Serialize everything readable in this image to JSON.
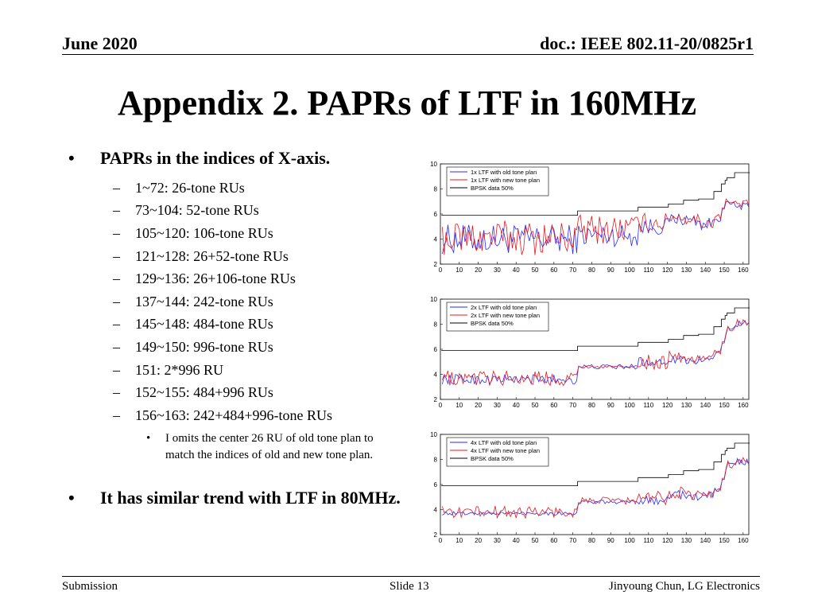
{
  "header": {
    "date": "June 2020",
    "doc": "doc.: IEEE 802.11-20/0825r1"
  },
  "title": "Appendix 2. PAPRs of LTF in 160MHz",
  "bullets": {
    "main1": "PAPRs in the indices of X-axis.",
    "sub": [
      "1~72: 26-tone RUs",
      "73~104: 52-tone RUs",
      "105~120: 106-tone RUs",
      "121~128: 26+52-tone RUs",
      "129~136: 26+106-tone RUs",
      "137~144: 242-tone RUs",
      "145~148: 484-tone RUs",
      "149~150: 996-tone RUs",
      "151: 2*996 RU",
      "152~155: 484+996 RUs",
      "156~163: 242+484+996-tone RUs"
    ],
    "subsub": "I omits the center 26 RU of old tone plan to match the indices of old and new tone plan.",
    "main2": "It has similar trend with LTF in 80MHz.",
    "marker_main": "•",
    "marker_sub": "–",
    "marker_subsub": "•"
  },
  "colors": {
    "old": "#2a2aff",
    "new": "#e8191e",
    "bpsk": "#000000"
  },
  "chart_data": [
    {
      "type": "line",
      "legend": [
        "1x LTF with old tone plan",
        "1x LTF with new tone plan",
        "BPSK data 50%"
      ],
      "xlim": [
        0,
        163
      ],
      "ylim": [
        2,
        10
      ],
      "xticks": [
        0,
        10,
        20,
        30,
        40,
        50,
        60,
        70,
        80,
        90,
        100,
        110,
        120,
        130,
        140,
        150,
        160
      ],
      "yticks": [
        2,
        4,
        6,
        8,
        10
      ],
      "series": [
        {
          "name": "1x LTF with old tone plan",
          "color": "#2a2aff",
          "segments": [
            [
              1,
              72,
              4.0,
              1.2
            ],
            [
              73,
              104,
              4.3,
              0.9
            ],
            [
              105,
              120,
              5.0,
              0.7
            ],
            [
              121,
              128,
              5.6,
              0.5
            ],
            [
              129,
              136,
              5.5,
              0.5
            ],
            [
              137,
              144,
              5.2,
              0.5
            ],
            [
              145,
              148,
              5.6,
              0.2
            ],
            [
              149,
              150,
              6.4,
              0
            ],
            [
              151,
              151,
              7.0,
              0
            ],
            [
              152,
              155,
              6.8,
              0.2
            ],
            [
              156,
              163,
              6.6,
              0.3
            ]
          ]
        },
        {
          "name": "1x LTF with new tone plan",
          "color": "#e8191e",
          "segments": [
            [
              1,
              72,
              4.1,
              1.4
            ],
            [
              73,
              104,
              4.8,
              1.2
            ],
            [
              105,
              120,
              5.3,
              0.8
            ],
            [
              121,
              128,
              5.8,
              0.5
            ],
            [
              129,
              136,
              5.6,
              0.5
            ],
            [
              137,
              144,
              5.3,
              0.5
            ],
            [
              145,
              148,
              5.8,
              0.2
            ],
            [
              149,
              150,
              6.5,
              0
            ],
            [
              151,
              151,
              7.2,
              0
            ],
            [
              152,
              155,
              6.9,
              0.2
            ],
            [
              156,
              163,
              6.8,
              0.3
            ]
          ]
        },
        {
          "name": "BPSK data 50%",
          "color": "#000000",
          "steps": [
            [
              1,
              72,
              5.9
            ],
            [
              73,
              104,
              6.25
            ],
            [
              105,
              120,
              6.55
            ],
            [
              121,
              128,
              6.8
            ],
            [
              129,
              136,
              7.1
            ],
            [
              137,
              144,
              7.2
            ],
            [
              145,
              148,
              7.8
            ],
            [
              149,
              150,
              8.4
            ],
            [
              151,
              151,
              8.7
            ],
            [
              152,
              155,
              8.9
            ],
            [
              156,
              163,
              9.3
            ]
          ]
        }
      ]
    },
    {
      "type": "line",
      "legend": [
        "2x LTF with old tone plan",
        "2x LTF with new tone plan",
        "BPSK data 50%"
      ],
      "xlim": [
        0,
        163
      ],
      "ylim": [
        2,
        10
      ],
      "xticks": [
        0,
        10,
        20,
        30,
        40,
        50,
        60,
        70,
        80,
        90,
        100,
        110,
        120,
        130,
        140,
        150,
        160
      ],
      "yticks": [
        2,
        4,
        6,
        8,
        10
      ],
      "series": [
        {
          "name": "2x LTF with old tone plan",
          "color": "#2a2aff",
          "segments": [
            [
              1,
              72,
              3.6,
              0.4
            ],
            [
              73,
              104,
              4.6,
              0.2
            ],
            [
              105,
              120,
              5.0,
              0.4
            ],
            [
              121,
              128,
              5.3,
              0.4
            ],
            [
              129,
              136,
              5.1,
              0.3
            ],
            [
              137,
              144,
              5.2,
              0.3
            ],
            [
              145,
              148,
              5.7,
              0.2
            ],
            [
              149,
              150,
              6.5,
              0
            ],
            [
              151,
              151,
              7.2,
              0
            ],
            [
              152,
              155,
              7.5,
              0.3
            ],
            [
              156,
              163,
              8.0,
              0.3
            ]
          ]
        },
        {
          "name": "2x LTF with new tone plan",
          "color": "#e8191e",
          "segments": [
            [
              1,
              72,
              3.7,
              0.6
            ],
            [
              73,
              104,
              4.6,
              0.1
            ],
            [
              105,
              120,
              5.0,
              0.6
            ],
            [
              121,
              128,
              5.4,
              0.5
            ],
            [
              129,
              136,
              5.2,
              0.4
            ],
            [
              137,
              144,
              5.3,
              0.3
            ],
            [
              145,
              148,
              5.8,
              0.2
            ],
            [
              149,
              150,
              6.6,
              0
            ],
            [
              151,
              151,
              7.3,
              0
            ],
            [
              152,
              155,
              7.6,
              0.3
            ],
            [
              156,
              163,
              8.1,
              0.3
            ]
          ]
        },
        {
          "name": "BPSK data 50%",
          "color": "#000000",
          "steps": [
            [
              1,
              72,
              5.9
            ],
            [
              73,
              104,
              6.25
            ],
            [
              105,
              120,
              6.55
            ],
            [
              121,
              128,
              6.8
            ],
            [
              129,
              136,
              7.1
            ],
            [
              137,
              144,
              7.2
            ],
            [
              145,
              148,
              7.8
            ],
            [
              149,
              150,
              8.4
            ],
            [
              151,
              151,
              8.7
            ],
            [
              152,
              155,
              8.9
            ],
            [
              156,
              163,
              9.3
            ]
          ]
        }
      ]
    },
    {
      "type": "line",
      "legend": [
        "4x LTF with old tone plan",
        "4x LTF with new tone plan",
        "BPSK data 50%"
      ],
      "xlim": [
        0,
        163
      ],
      "ylim": [
        2,
        10
      ],
      "xticks": [
        0,
        10,
        20,
        30,
        40,
        50,
        60,
        70,
        80,
        90,
        100,
        110,
        120,
        130,
        140,
        150,
        160
      ],
      "yticks": [
        2,
        4,
        6,
        8,
        10
      ],
      "series": [
        {
          "name": "4x LTF with old tone plan",
          "color": "#2a2aff",
          "segments": [
            [
              1,
              72,
              3.7,
              0.15
            ],
            [
              73,
              104,
              4.6,
              0.15
            ],
            [
              105,
              120,
              4.8,
              0.4
            ],
            [
              121,
              128,
              5.2,
              0.4
            ],
            [
              129,
              136,
              5.0,
              0.3
            ],
            [
              137,
              144,
              5.1,
              0.3
            ],
            [
              145,
              148,
              5.6,
              0.2
            ],
            [
              149,
              150,
              6.4,
              0
            ],
            [
              151,
              151,
              7.2,
              0
            ],
            [
              152,
              155,
              7.5,
              0.3
            ],
            [
              156,
              163,
              7.8,
              0.3
            ]
          ]
        },
        {
          "name": "4x LTF with new tone plan",
          "color": "#e8191e",
          "segments": [
            [
              1,
              72,
              3.8,
              0.5
            ],
            [
              73,
              104,
              4.7,
              0.3
            ],
            [
              105,
              120,
              4.9,
              0.6
            ],
            [
              121,
              128,
              5.4,
              0.5
            ],
            [
              129,
              136,
              5.2,
              0.4
            ],
            [
              137,
              144,
              5.2,
              0.3
            ],
            [
              145,
              148,
              5.7,
              0.2
            ],
            [
              149,
              150,
              6.5,
              0
            ],
            [
              151,
              151,
              7.3,
              0
            ],
            [
              152,
              155,
              7.6,
              0.3
            ],
            [
              156,
              163,
              7.9,
              0.3
            ]
          ]
        },
        {
          "name": "BPSK data 50%",
          "color": "#000000",
          "steps": [
            [
              1,
              72,
              5.9
            ],
            [
              73,
              104,
              6.25
            ],
            [
              105,
              120,
              6.55
            ],
            [
              121,
              128,
              6.8
            ],
            [
              129,
              136,
              7.1
            ],
            [
              137,
              144,
              7.2
            ],
            [
              145,
              148,
              7.8
            ],
            [
              149,
              150,
              8.4
            ],
            [
              151,
              151,
              8.7
            ],
            [
              152,
              155,
              8.9
            ],
            [
              156,
              163,
              9.3
            ]
          ]
        }
      ]
    }
  ],
  "footer": {
    "left": "Submission",
    "center": "Slide 13",
    "right": "Jinyoung Chun, LG Electronics"
  }
}
